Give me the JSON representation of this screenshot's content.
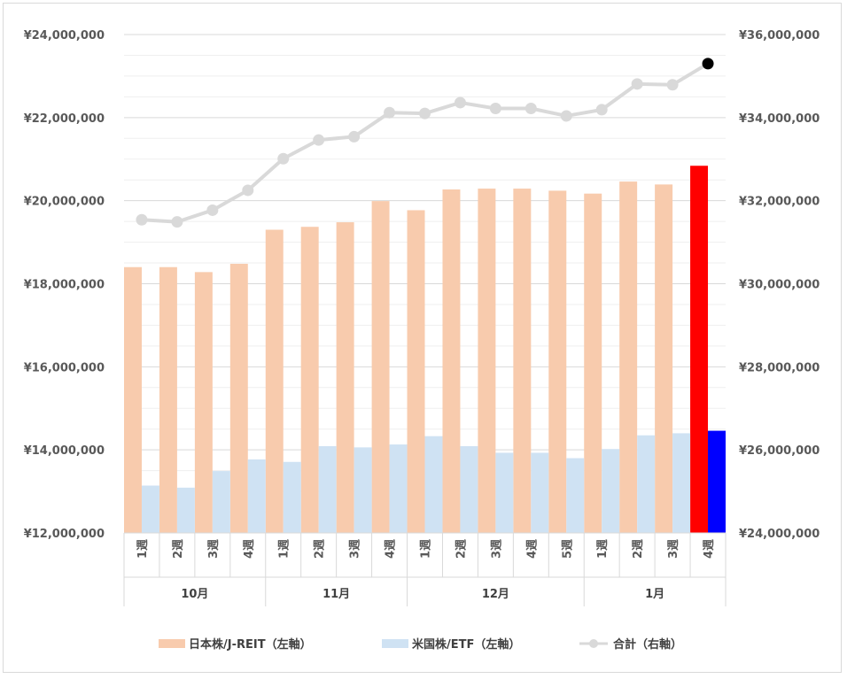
{
  "chart_data": {
    "type": "bar",
    "weeks": [
      "1週",
      "2週",
      "3週",
      "4週",
      "1週",
      "2週",
      "3週",
      "4週",
      "1週",
      "2週",
      "3週",
      "4週",
      "5週",
      "1週",
      "2週",
      "3週",
      "4週"
    ],
    "months": [
      {
        "label": "10月",
        "count": 4
      },
      {
        "label": "11月",
        "count": 4
      },
      {
        "label": "12月",
        "count": 5
      },
      {
        "label": "1月",
        "count": 4
      }
    ],
    "y_left": {
      "min": 12000000,
      "max": 24000000,
      "step": 2000000,
      "ticks": [
        "¥12,000,000",
        "¥14,000,000",
        "¥16,000,000",
        "¥18,000,000",
        "¥20,000,000",
        "¥22,000,000",
        "¥24,000,000"
      ]
    },
    "y_right": {
      "min": 24000000,
      "max": 36000000,
      "step": 2000000,
      "ticks": [
        "¥24,000,000",
        "¥26,000,000",
        "¥28,000,000",
        "¥30,000,000",
        "¥32,000,000",
        "¥34,000,000",
        "¥36,000,000"
      ]
    },
    "series": [
      {
        "name": "日本株/J-REIT（左軸）",
        "axis": "left",
        "color": "#f8cbad",
        "highlight_color": "#ff0000",
        "values": [
          18400000,
          18400000,
          18280000,
          18480000,
          19300000,
          19370000,
          19480000,
          19990000,
          19770000,
          20270000,
          20290000,
          20290000,
          20240000,
          20170000,
          20460000,
          20390000,
          20840000
        ]
      },
      {
        "name": "米国株/ETF（左軸）",
        "axis": "left",
        "color": "#cfe2f3",
        "highlight_color": "#0000ff",
        "values": [
          13140000,
          13090000,
          13490000,
          13770000,
          13710000,
          14090000,
          14060000,
          14130000,
          14330000,
          14090000,
          13930000,
          13930000,
          13800000,
          14020000,
          14350000,
          14400000,
          14460000
        ]
      },
      {
        "name": "合計（右軸）",
        "axis": "right",
        "color": "#d9d9d9",
        "highlight_color": "#000000",
        "values": [
          31540000,
          31490000,
          31770000,
          32250000,
          33010000,
          33460000,
          33540000,
          34120000,
          34100000,
          34360000,
          34220000,
          34220000,
          34040000,
          34190000,
          34810000,
          34790000,
          35300000
        ]
      }
    ],
    "legend": {
      "position": "bottom"
    },
    "grid": true
  }
}
